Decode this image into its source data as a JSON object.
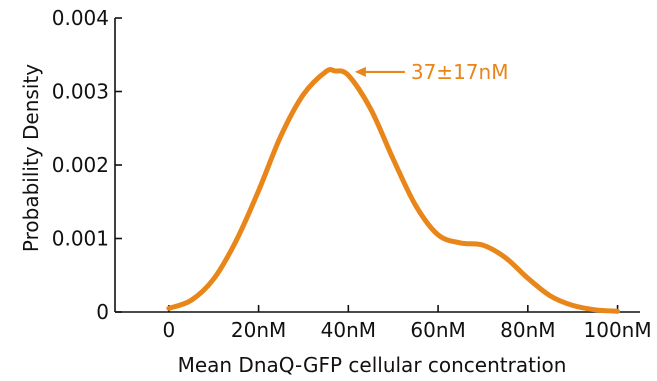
{
  "chart_data": {
    "type": "line",
    "xlabel": "Mean DnaQ-GFP cellular concentration",
    "ylabel": "Probability Density",
    "xlim": [
      -12,
      105
    ],
    "ylim": [
      0,
      0.004
    ],
    "x_ticks": [
      {
        "value": 0,
        "label": "0"
      },
      {
        "value": 20,
        "label": "20nM"
      },
      {
        "value": 40,
        "label": "40nM"
      },
      {
        "value": 60,
        "label": "60nM"
      },
      {
        "value": 80,
        "label": "80nM"
      },
      {
        "value": 100,
        "label": "100nM"
      }
    ],
    "y_ticks": [
      {
        "value": 0,
        "label": "0"
      },
      {
        "value": 0.001,
        "label": "0.001"
      },
      {
        "value": 0.002,
        "label": "0.002"
      },
      {
        "value": 0.003,
        "label": "0.003"
      },
      {
        "value": 0.004,
        "label": "0.004"
      }
    ],
    "grid": false,
    "color": "#e8861a",
    "series": [
      {
        "x": [
          0,
          5,
          10,
          15,
          20,
          25,
          30,
          35,
          37,
          40,
          45,
          50,
          55,
          60,
          65,
          70,
          75,
          80,
          85,
          90,
          95,
          100
        ],
        "y": [
          5e-05,
          0.00016,
          0.00045,
          0.00097,
          0.00165,
          0.0024,
          0.00296,
          0.00327,
          0.00328,
          0.00322,
          0.00276,
          0.00208,
          0.00145,
          0.00105,
          0.00094,
          0.00091,
          0.00074,
          0.00046,
          0.00022,
          9e-05,
          3e-05,
          1e-05
        ]
      }
    ],
    "annotation": {
      "text": "37±17nM",
      "x": 37,
      "y": 0.00328
    }
  }
}
